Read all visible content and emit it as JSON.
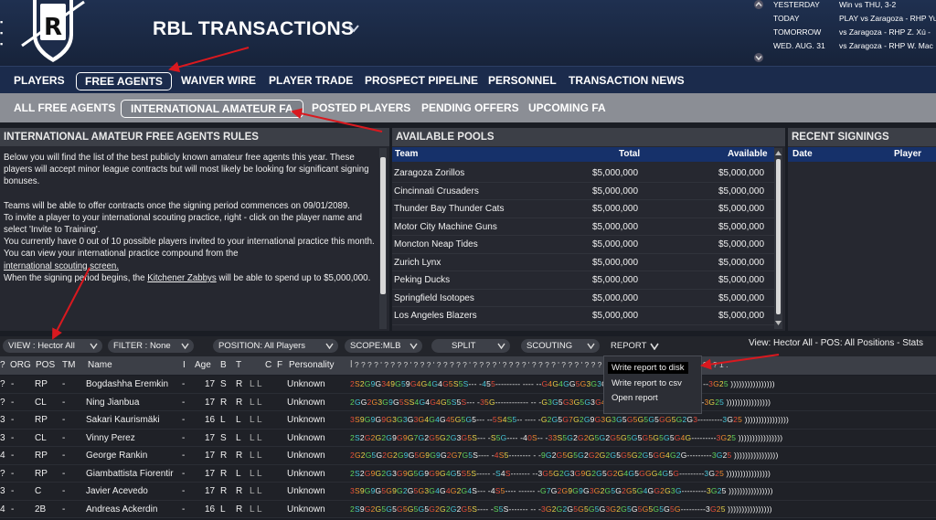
{
  "header": {
    "title": "RBL TRANSACTIONS",
    "logo_letter": "R",
    "schedule": [
      {
        "day": "YESTERDAY",
        "info": "Win vs THU, 3-2"
      },
      {
        "day": "TODAY",
        "info": "PLAY vs Zaragoza - RHP Yu"
      },
      {
        "day": "TOMORROW",
        "info": "vs Zaragoza - RHP Z. Xú -"
      },
      {
        "day": "WED. AUG. 31",
        "info": "vs Zaragoza - RHP W. Mac"
      }
    ]
  },
  "main_tabs": [
    "PLAYERS",
    "FREE AGENTS",
    "WAIVER WIRE",
    "PLAYER TRADE",
    "PROSPECT PIPELINE",
    "PERSONNEL",
    "TRANSACTION NEWS"
  ],
  "sub_tabs": [
    "ALL FREE AGENTS",
    "INTERNATIONAL AMATEUR FA",
    "POSTED PLAYERS",
    "PENDING OFFERS",
    "UPCOMING FA"
  ],
  "rules_panel": {
    "title": "INTERNATIONAL AMATEUR FREE AGENTS RULES",
    "p1": "Below you will find the list of the best publicly known amateur free agents this year. These players will accept minor league contracts but will most likely be looking for significant signing bonuses.",
    "p2": "Teams will be able to offer contracts once the signing period commences on 09/01/2089.",
    "p3": "To invite a player to your international scouting practice, right - click on the player name and select 'Invite to Training'.",
    "p4": "You currently have 0 out of 10 possible players invited to your international practice this month.",
    "p5a": "You can view your international practice compound from the",
    "p5link": "international scouting screen.",
    "p6a": "When the signing period begins, the",
    "p6link": "Kitchener Zabbys",
    "p6b": "will be able to spend up to $5,000,000."
  },
  "pools_panel": {
    "title": "AVAILABLE POOLS",
    "columns": [
      "Team",
      "Total",
      "Available"
    ],
    "rows": [
      [
        "Zaragoza Zorillos",
        "$5,000,000",
        "$5,000,000"
      ],
      [
        "Cincinnati Crusaders",
        "$5,000,000",
        "$5,000,000"
      ],
      [
        "Thunder Bay Thunder Cats",
        "$5,000,000",
        "$5,000,000"
      ],
      [
        "Motor City Machine Guns",
        "$5,000,000",
        "$5,000,000"
      ],
      [
        "Moncton Neap Tides",
        "$5,000,000",
        "$5,000,000"
      ],
      [
        "Zurich Lynx",
        "$5,000,000",
        "$5,000,000"
      ],
      [
        "Peking Ducks",
        "$5,000,000",
        "$5,000,000"
      ],
      [
        "Springfield Isotopes",
        "$5,000,000",
        "$5,000,000"
      ],
      [
        "Los Angeles Blazers",
        "$5,000,000",
        "$5,000,000"
      ]
    ]
  },
  "signings_panel": {
    "title": "RECENT SIGNINGS",
    "columns": [
      "Date",
      "Player"
    ]
  },
  "filter_bar": {
    "view": "VIEW : Hector All",
    "filter": "FILTER : None",
    "position": "POSITION: All Players",
    "scope": "SCOPE:MLB",
    "split": "SPLIT",
    "scouting": "SCOUTING",
    "report": "REPORT",
    "summary": "View: Hector All - POS: All Positions - Stats"
  },
  "report_menu": [
    "Write report to disk",
    "Write report to csv",
    "Open report"
  ],
  "player_table": {
    "columns": [
      "ORG",
      "POS",
      "TM",
      "Name",
      "I",
      "Age",
      "B",
      "T",
      "C",
      "F",
      "Personality"
    ],
    "rows": [
      {
        "pre": "?",
        "org": "-",
        "pos": "RP",
        "tm": "-",
        "name": "Bogdashha Eremkin",
        "i": "-",
        "age": "17",
        "b": "S",
        "t": "R",
        "personality": "Unknown"
      },
      {
        "pre": "?",
        "org": "-",
        "pos": "CL",
        "tm": "-",
        "name": "Ning Jianbua",
        "i": "-",
        "age": "17",
        "b": "R",
        "t": "R",
        "personality": "Unknown"
      },
      {
        "pre": "3",
        "org": "-",
        "pos": "RP",
        "tm": "-",
        "name": "Sakari Kaurismäki",
        "i": "-",
        "age": "16",
        "b": "L",
        "t": "L",
        "personality": "Unknown"
      },
      {
        "pre": "3",
        "org": "-",
        "pos": "CL",
        "tm": "-",
        "name": "Vinny Perez",
        "i": "-",
        "age": "17",
        "b": "S",
        "t": "L",
        "personality": "Unknown"
      },
      {
        "pre": "4",
        "org": "-",
        "pos": "RP",
        "tm": "-",
        "name": "George Rankin",
        "i": "-",
        "age": "17",
        "b": "R",
        "t": "R",
        "personality": "Unknown"
      },
      {
        "pre": "?",
        "org": "-",
        "pos": "RP",
        "tm": "-",
        "name": "Giambattista Fiorentir",
        "i": "-",
        "age": "17",
        "b": "R",
        "t": "L",
        "personality": "Unknown"
      },
      {
        "pre": "3",
        "org": "-",
        "pos": "C",
        "tm": "-",
        "name": "Javier Acevedo",
        "i": "-",
        "age": "17",
        "b": "R",
        "t": "R",
        "personality": "Unknown"
      },
      {
        "pre": "4",
        "org": "-",
        "pos": "2B",
        "tm": "-",
        "name": "Andreas Ackerdin",
        "i": "-",
        "age": "16",
        "b": "L",
        "t": "R",
        "personality": "Unknown"
      }
    ]
  },
  "colors": {
    "header_bg": "#1f3050",
    "main_tabs_bg": "#1b2b4c",
    "sub_tabs_bg": "#8b8e95",
    "table_head_blue": "#16316a",
    "annotation_red": "#d9191f"
  },
  "icons": [
    "logo-shield",
    "chevron-down-icon",
    "scroll-up-icon",
    "scroll-down-icon"
  ]
}
